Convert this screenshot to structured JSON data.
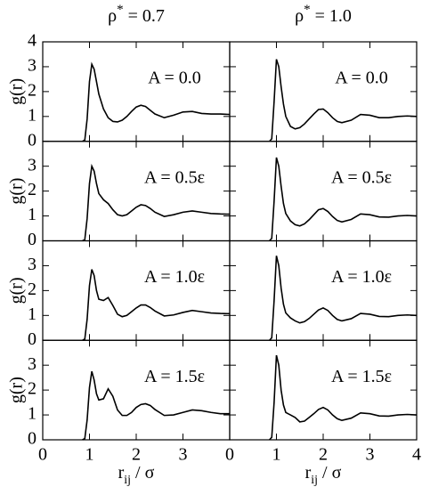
{
  "chart_data": [
    {
      "type": "line",
      "title": [
        "ρ",
        "*",
        " = 0.7"
      ],
      "annotation": "A = 0.0",
      "ylabel": "g(r)",
      "color": "#000000",
      "x": [
        0.85,
        0.9,
        0.95,
        1.0,
        1.05,
        1.1,
        1.15,
        1.2,
        1.3,
        1.4,
        1.5,
        1.6,
        1.7,
        1.8,
        1.9,
        2.0,
        2.1,
        2.2,
        2.3,
        2.4,
        2.6,
        2.8,
        3.0,
        3.2,
        3.4,
        3.6,
        3.8,
        4.0
      ],
      "values": [
        0,
        0.05,
        0.9,
        2.4,
        3.1,
        2.9,
        2.4,
        1.9,
        1.3,
        0.95,
        0.8,
        0.78,
        0.85,
        1.0,
        1.2,
        1.38,
        1.45,
        1.4,
        1.25,
        1.1,
        0.95,
        1.05,
        1.18,
        1.2,
        1.12,
        1.1,
        1.1,
        1.08
      ],
      "xlim": [
        0,
        4
      ],
      "ylim": [
        0,
        4
      ],
      "xticks": [
        0,
        1,
        2,
        3,
        4
      ],
      "yticks": [
        0,
        1,
        2,
        3,
        4
      ],
      "xtick_labels": false,
      "ytick_labels": true
    },
    {
      "type": "line",
      "title": [
        "ρ",
        "*",
        " = 1.0"
      ],
      "annotation": "A = 0.0",
      "color": "#000000",
      "x": [
        0.85,
        0.9,
        0.95,
        1.0,
        1.05,
        1.1,
        1.15,
        1.2,
        1.3,
        1.4,
        1.5,
        1.6,
        1.7,
        1.8,
        1.9,
        2.0,
        2.1,
        2.2,
        2.3,
        2.4,
        2.6,
        2.8,
        3.0,
        3.2,
        3.4,
        3.6,
        3.8,
        4.0
      ],
      "values": [
        0,
        0.1,
        1.6,
        3.3,
        3.0,
        2.2,
        1.5,
        1.0,
        0.6,
        0.5,
        0.55,
        0.7,
        0.9,
        1.1,
        1.28,
        1.3,
        1.15,
        0.95,
        0.8,
        0.75,
        0.85,
        1.08,
        1.05,
        0.95,
        0.95,
        1.0,
        1.02,
        1.0
      ],
      "xlim": [
        0,
        4
      ],
      "ylim": [
        0,
        4
      ],
      "xticks": [
        0,
        1,
        2,
        3,
        4
      ],
      "yticks": [
        0,
        1,
        2,
        3,
        4
      ],
      "xtick_labels": false,
      "ytick_labels": false
    },
    {
      "type": "line",
      "annotation": "A = 0.5ε",
      "ylabel": "g(r)",
      "color": "#000000",
      "x": [
        0.85,
        0.9,
        0.95,
        1.0,
        1.05,
        1.1,
        1.15,
        1.2,
        1.3,
        1.4,
        1.5,
        1.6,
        1.7,
        1.8,
        1.9,
        2.0,
        2.1,
        2.2,
        2.3,
        2.4,
        2.6,
        2.8,
        3.0,
        3.2,
        3.4,
        3.6,
        3.8,
        4.0
      ],
      "values": [
        0,
        0.05,
        0.9,
        2.3,
        3.0,
        2.8,
        2.3,
        1.9,
        1.65,
        1.5,
        1.25,
        1.05,
        1.0,
        1.05,
        1.2,
        1.35,
        1.45,
        1.42,
        1.3,
        1.15,
        0.98,
        1.05,
        1.15,
        1.2,
        1.15,
        1.1,
        1.08,
        1.07
      ],
      "xlim": [
        0,
        4
      ],
      "ylim": [
        0,
        4
      ],
      "xticks": [
        0,
        1,
        2,
        3,
        4
      ],
      "yticks": [
        0,
        1,
        2,
        3
      ],
      "xtick_labels": false,
      "ytick_labels": true
    },
    {
      "type": "line",
      "annotation": "A = 0.5ε",
      "color": "#000000",
      "x": [
        0.85,
        0.9,
        0.95,
        1.0,
        1.05,
        1.1,
        1.15,
        1.2,
        1.3,
        1.4,
        1.5,
        1.6,
        1.7,
        1.8,
        1.9,
        2.0,
        2.1,
        2.2,
        2.3,
        2.4,
        2.6,
        2.8,
        3.0,
        3.2,
        3.4,
        3.6,
        3.8,
        4.0
      ],
      "values": [
        0,
        0.1,
        1.6,
        3.35,
        3.0,
        2.2,
        1.5,
        1.1,
        0.8,
        0.65,
        0.6,
        0.68,
        0.85,
        1.05,
        1.25,
        1.3,
        1.18,
        0.98,
        0.82,
        0.76,
        0.86,
        1.08,
        1.05,
        0.96,
        0.95,
        1.0,
        1.02,
        1.0
      ],
      "xlim": [
        0,
        4
      ],
      "ylim": [
        0,
        4
      ],
      "xticks": [
        0,
        1,
        2,
        3,
        4
      ],
      "yticks": [
        0,
        1,
        2,
        3
      ],
      "xtick_labels": false,
      "ytick_labels": false
    },
    {
      "type": "line",
      "annotation": "A = 1.0ε",
      "ylabel": "g(r)",
      "color": "#000000",
      "x": [
        0.85,
        0.9,
        0.95,
        1.0,
        1.05,
        1.1,
        1.15,
        1.2,
        1.3,
        1.4,
        1.5,
        1.6,
        1.7,
        1.8,
        1.9,
        2.0,
        2.1,
        2.2,
        2.3,
        2.4,
        2.6,
        2.8,
        3.0,
        3.2,
        3.4,
        3.6,
        3.8,
        4.0
      ],
      "values": [
        0,
        0.05,
        0.85,
        2.2,
        2.85,
        2.6,
        2.0,
        1.65,
        1.6,
        1.72,
        1.4,
        1.05,
        0.95,
        1.0,
        1.15,
        1.3,
        1.42,
        1.42,
        1.32,
        1.18,
        0.98,
        1.02,
        1.12,
        1.2,
        1.15,
        1.1,
        1.08,
        1.07
      ],
      "xlim": [
        0,
        4
      ],
      "ylim": [
        0,
        4
      ],
      "xticks": [
        0,
        1,
        2,
        3,
        4
      ],
      "yticks": [
        0,
        1,
        2,
        3
      ],
      "xtick_labels": false,
      "ytick_labels": true
    },
    {
      "type": "line",
      "annotation": "A = 1.0ε",
      "color": "#000000",
      "x": [
        0.85,
        0.9,
        0.95,
        1.0,
        1.05,
        1.1,
        1.15,
        1.2,
        1.3,
        1.4,
        1.5,
        1.6,
        1.7,
        1.8,
        1.9,
        2.0,
        2.1,
        2.2,
        2.3,
        2.4,
        2.6,
        2.8,
        3.0,
        3.2,
        3.4,
        3.6,
        3.8,
        4.0
      ],
      "values": [
        0,
        0.1,
        1.6,
        3.4,
        3.0,
        2.1,
        1.45,
        1.1,
        0.9,
        0.78,
        0.7,
        0.75,
        0.88,
        1.05,
        1.22,
        1.3,
        1.2,
        1.0,
        0.84,
        0.78,
        0.87,
        1.08,
        1.05,
        0.96,
        0.95,
        1.0,
        1.02,
        1.0
      ],
      "xlim": [
        0,
        4
      ],
      "ylim": [
        0,
        4
      ],
      "xticks": [
        0,
        1,
        2,
        3,
        4
      ],
      "yticks": [
        0,
        1,
        2,
        3
      ],
      "xtick_labels": false,
      "ytick_labels": false
    },
    {
      "type": "line",
      "annotation": "A = 1.5ε",
      "ylabel": "g(r)",
      "xlabel": [
        "r",
        "ij",
        " / σ"
      ],
      "color": "#000000",
      "x": [
        0.85,
        0.9,
        0.95,
        1.0,
        1.05,
        1.1,
        1.15,
        1.2,
        1.3,
        1.4,
        1.5,
        1.6,
        1.7,
        1.8,
        1.9,
        2.0,
        2.1,
        2.2,
        2.3,
        2.4,
        2.6,
        2.8,
        3.0,
        3.2,
        3.4,
        3.6,
        3.8,
        4.0
      ],
      "values": [
        0,
        0.05,
        0.8,
        2.1,
        2.75,
        2.4,
        1.85,
        1.6,
        1.65,
        2.05,
        1.75,
        1.2,
        0.98,
        0.98,
        1.1,
        1.3,
        1.42,
        1.45,
        1.38,
        1.22,
        0.98,
        1.0,
        1.1,
        1.2,
        1.17,
        1.1,
        1.05,
        1.05
      ],
      "xlim": [
        0,
        4
      ],
      "ylim": [
        0,
        4
      ],
      "xticks": [
        0,
        1,
        2,
        3
      ],
      "yticks": [
        0,
        1,
        2,
        3
      ],
      "xtick_labels": true,
      "ytick_labels": true
    },
    {
      "type": "line",
      "annotation": "A = 1.5ε",
      "xlabel": [
        "r",
        "ij",
        " / σ"
      ],
      "color": "#000000",
      "x": [
        0.85,
        0.9,
        0.95,
        1.0,
        1.05,
        1.1,
        1.15,
        1.2,
        1.3,
        1.4,
        1.5,
        1.6,
        1.7,
        1.8,
        1.9,
        2.0,
        2.1,
        2.2,
        2.3,
        2.4,
        2.6,
        2.8,
        3.0,
        3.2,
        3.4,
        3.6,
        3.8,
        4.0
      ],
      "values": [
        0,
        0.1,
        1.5,
        3.4,
        3.0,
        2.0,
        1.4,
        1.1,
        1.0,
        0.9,
        0.72,
        0.75,
        0.9,
        1.05,
        1.22,
        1.3,
        1.2,
        1.0,
        0.85,
        0.78,
        0.87,
        1.08,
        1.05,
        0.96,
        0.95,
        1.0,
        1.02,
        1.0
      ],
      "xlim": [
        0,
        4
      ],
      "ylim": [
        0,
        4
      ],
      "xticks": [
        0,
        1,
        2,
        3,
        4
      ],
      "yticks": [
        0,
        1,
        2,
        3
      ],
      "xtick_labels": true,
      "ytick_labels": false
    }
  ]
}
